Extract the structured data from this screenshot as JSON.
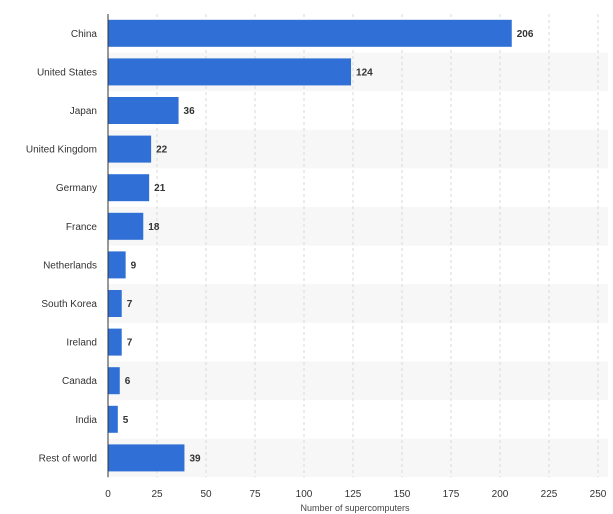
{
  "chart_data": {
    "type": "bar",
    "orientation": "horizontal",
    "categories": [
      "China",
      "United States",
      "Japan",
      "United Kingdom",
      "Germany",
      "France",
      "Netherlands",
      "South Korea",
      "Ireland",
      "Canada",
      "India",
      "Rest of world"
    ],
    "values": [
      206,
      124,
      36,
      22,
      21,
      18,
      9,
      7,
      7,
      6,
      5,
      39
    ],
    "xlabel": "Number of supercomputers",
    "ylabel": "",
    "xlim": [
      0,
      250
    ],
    "xticks": [
      "0",
      "25",
      "50",
      "75",
      "100",
      "125",
      "150",
      "175",
      "200",
      "225",
      "250"
    ],
    "grid": "vertical dashed",
    "colors": {
      "bar": "#2f6fd6",
      "band": "#f7f7f7",
      "grid": "#d9d9d9",
      "text": "#333333"
    }
  }
}
